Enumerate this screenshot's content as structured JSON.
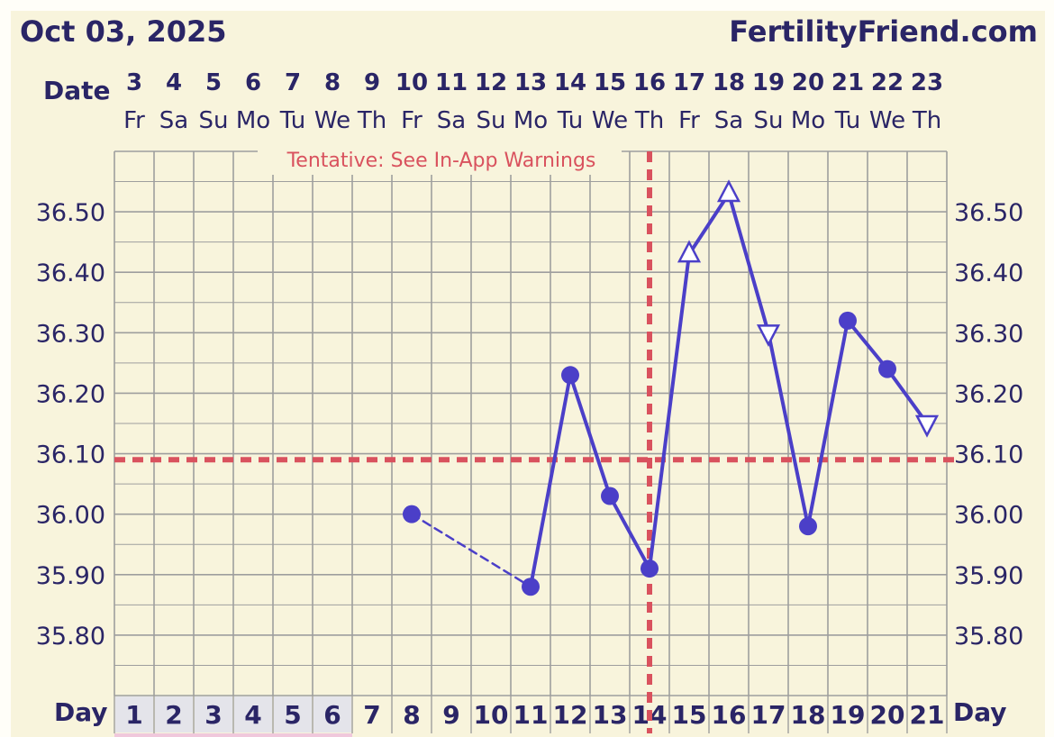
{
  "header": {
    "date_title": "Oct 03, 2025",
    "site": "FertilityFriend.com",
    "date_label": "Date",
    "day_label": "Day"
  },
  "colors": {
    "background": "#f8f4dc",
    "grid": "#9e9e9e",
    "series": "#4b3fc8",
    "coverline": "#d9525e",
    "text": "#2a2566"
  },
  "chart_data": {
    "type": "line",
    "subtitle": "Tentative: See In-App Warnings",
    "dates": [
      "3",
      "4",
      "5",
      "6",
      "7",
      "8",
      "9",
      "10",
      "11",
      "12",
      "13",
      "14",
      "15",
      "16",
      "17",
      "18",
      "19",
      "20",
      "21",
      "22",
      "23"
    ],
    "weekdays": [
      "Fr",
      "Sa",
      "Su",
      "Mo",
      "Tu",
      "We",
      "Th",
      "Fr",
      "Sa",
      "Su",
      "Mo",
      "Tu",
      "We",
      "Th",
      "Fr",
      "Sa",
      "Su",
      "Mo",
      "Tu",
      "We",
      "Th"
    ],
    "cycle_days": [
      1,
      2,
      3,
      4,
      5,
      6,
      7,
      8,
      9,
      10,
      11,
      12,
      13,
      14,
      15,
      16,
      17,
      18,
      19,
      20,
      21
    ],
    "yticks": [
      "36.50",
      "36.40",
      "36.30",
      "36.20",
      "36.10",
      "36.00",
      "35.90",
      "35.80"
    ],
    "ylim": [
      35.7,
      36.6
    ],
    "coverline": 36.09,
    "ovulation_day": 14,
    "grid": true,
    "points": [
      {
        "day": 8,
        "temp": 36.0,
        "marker": "circle"
      },
      {
        "day": 11,
        "temp": 35.88,
        "marker": "circle"
      },
      {
        "day": 12,
        "temp": 36.23,
        "marker": "circle"
      },
      {
        "day": 13,
        "temp": 36.03,
        "marker": "circle"
      },
      {
        "day": 14,
        "temp": 35.91,
        "marker": "circle"
      },
      {
        "day": 15,
        "temp": 36.43,
        "marker": "triangle-up"
      },
      {
        "day": 16,
        "temp": 36.53,
        "marker": "triangle-up"
      },
      {
        "day": 17,
        "temp": 36.3,
        "marker": "triangle-down"
      },
      {
        "day": 18,
        "temp": 35.98,
        "marker": "circle"
      },
      {
        "day": 19,
        "temp": 36.32,
        "marker": "circle"
      },
      {
        "day": 20,
        "temp": 36.24,
        "marker": "circle"
      },
      {
        "day": 21,
        "temp": 36.15,
        "marker": "triangle-down"
      }
    ],
    "dashed_segments": [
      [
        8,
        11
      ]
    ]
  }
}
